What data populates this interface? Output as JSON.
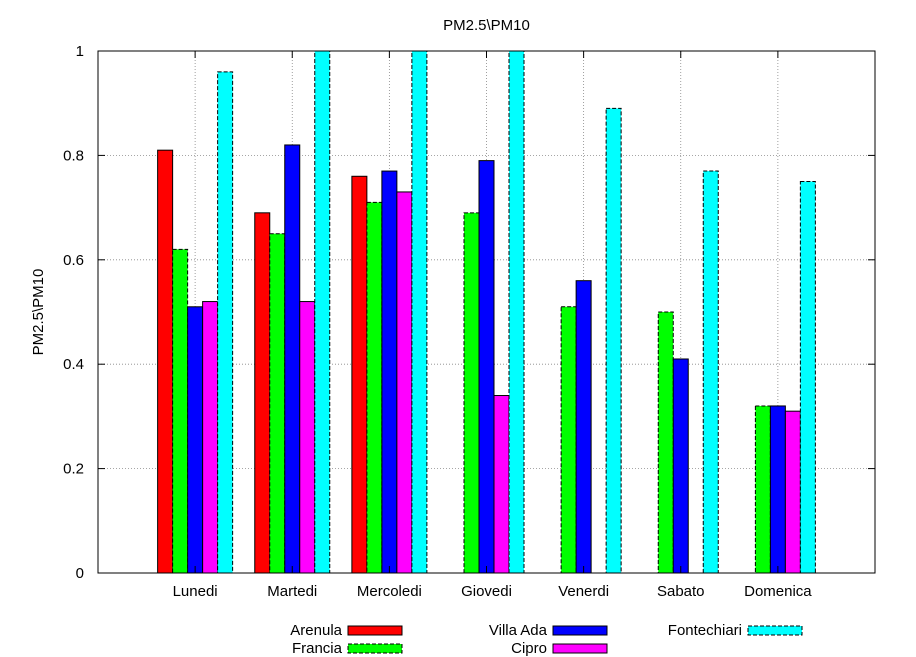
{
  "chart_data": {
    "type": "bar",
    "title": "PM2.5\\PM10",
    "xlabel": "",
    "ylabel": "PM2.5\\PM10",
    "ylim": [
      0,
      1
    ],
    "yticks": [
      "0",
      "0.2",
      "0.4",
      "0.6",
      "0.8",
      "1"
    ],
    "grid": true,
    "legend_position": "bottom",
    "categories": [
      "Lunedi",
      "Martedi",
      "Mercoledi",
      "Giovedi",
      "Venerdi",
      "Sabato",
      "Domenica"
    ],
    "series": [
      {
        "name": "Arenula",
        "color": "#ff0000",
        "dashed": false,
        "values": [
          0.81,
          0.69,
          0.76,
          null,
          null,
          null,
          null
        ]
      },
      {
        "name": "Francia",
        "color": "#00ff00",
        "dashed": true,
        "values": [
          0.62,
          0.65,
          0.71,
          0.69,
          0.51,
          0.5,
          0.32
        ]
      },
      {
        "name": "Villa Ada",
        "color": "#0000ff",
        "dashed": false,
        "values": [
          0.51,
          0.82,
          0.77,
          0.79,
          0.56,
          0.41,
          0.32
        ]
      },
      {
        "name": "Cipro",
        "color": "#ff00ff",
        "dashed": false,
        "values": [
          0.52,
          0.52,
          0.73,
          0.34,
          null,
          null,
          0.31
        ]
      },
      {
        "name": "Fontechiari",
        "color": "#00ffff",
        "dashed": true,
        "values": [
          0.96,
          1.0,
          1.0,
          1.0,
          0.89,
          0.77,
          0.75
        ]
      }
    ]
  }
}
